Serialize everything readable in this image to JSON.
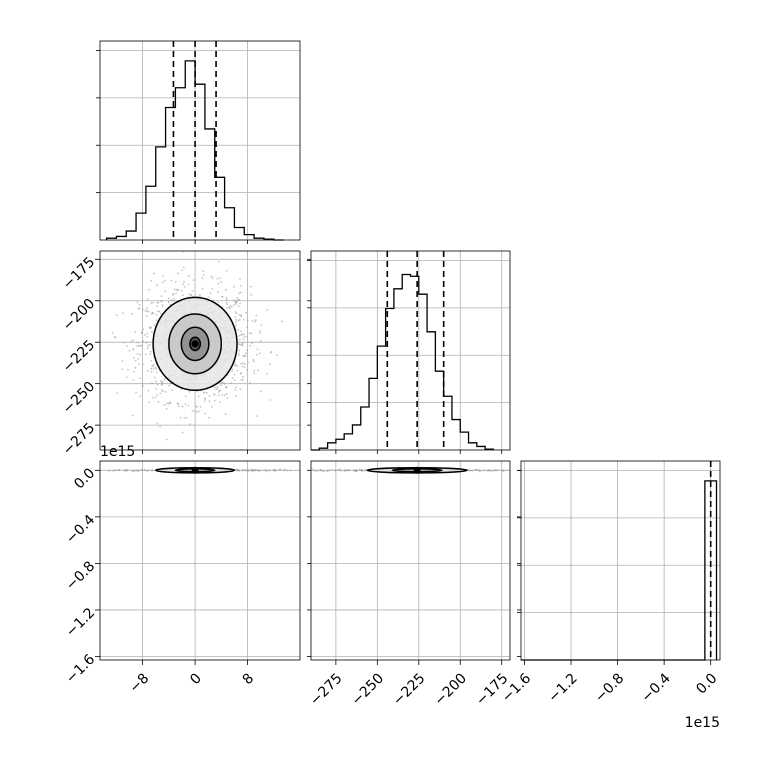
{
  "chart_data": {
    "type": "corner",
    "title": "",
    "parameters": [
      "",
      "",
      ""
    ],
    "grid": true,
    "ticks": {
      "p0": {
        "values": [
          -8,
          0,
          8
        ],
        "labels": [
          "−8",
          "0",
          "8"
        ]
      },
      "p1": {
        "values": [
          -275,
          -250,
          -225,
          -200,
          -175
        ],
        "labels": [
          "−275",
          "−250",
          "−225",
          "−200",
          "−175"
        ]
      },
      "p2": {
        "values": [
          -1.6,
          -1.2,
          -0.8,
          -0.4,
          0.0
        ],
        "labels": [
          "−1.6",
          "−1.2",
          "−0.8",
          "−0.4",
          "0.0"
        ],
        "offset": "1e15"
      }
    },
    "ranges": {
      "p0": [
        -14.5,
        16
      ],
      "p1": [
        -290,
        -170
      ],
      "p2": [
        -1.63,
        0.08
      ]
    },
    "quantile_lines": {
      "p0": [
        -3.3,
        0.0,
        3.2
      ],
      "p1": [
        -244,
        -226,
        -210
      ],
      "p2": [
        0.0
      ]
    },
    "hist_p0": {
      "bins": [
        -13.5,
        -12,
        -10.5,
        -9,
        -7.5,
        -6,
        -4.5,
        -3,
        -1.5,
        0,
        1.5,
        3,
        4.5,
        6,
        7.5,
        9,
        10.5,
        12,
        13.5
      ],
      "counts": [
        0.01,
        0.02,
        0.05,
        0.15,
        0.3,
        0.52,
        0.74,
        0.85,
        1.0,
        0.87,
        0.62,
        0.35,
        0.18,
        0.07,
        0.03,
        0.01,
        0.005,
        0.0
      ]
    },
    "hist_p1": {
      "bins": [
        -290,
        -285,
        -280,
        -275,
        -270,
        -265,
        -260,
        -255,
        -250,
        -245,
        -240,
        -235,
        -230,
        -225,
        -220,
        -215,
        -210,
        -205,
        -200,
        -195,
        -190,
        -185,
        -180
      ],
      "counts": [
        0.0,
        0.01,
        0.04,
        0.06,
        0.09,
        0.14,
        0.24,
        0.4,
        0.58,
        0.79,
        0.9,
        0.98,
        0.97,
        0.87,
        0.66,
        0.44,
        0.3,
        0.17,
        0.1,
        0.04,
        0.02,
        0.005
      ]
    },
    "hist_p2": {
      "bins": [
        -1.63,
        -0.05,
        0.05
      ],
      "counts": [
        0.0,
        1.0
      ]
    },
    "contours_p0_p1": {
      "center": [
        0.0,
        -226
      ],
      "levels": [
        {
          "rx": 6.4,
          "ry": 28
        },
        {
          "rx": 4.0,
          "ry": 18
        },
        {
          "rx": 2.1,
          "ry": 10
        },
        {
          "rx": 0.8,
          "ry": 4
        }
      ]
    },
    "contours_p0_p2": {
      "center": [
        0.0,
        0.0
      ],
      "levels": [
        {
          "rx": 6.0,
          "ry": 0.022
        },
        {
          "rx": 3.0,
          "ry": 0.012
        }
      ]
    },
    "contours_p1_p2": {
      "center": [
        -226,
        0.0
      ],
      "levels": [
        {
          "rx": 30,
          "ry": 0.022
        },
        {
          "rx": 15,
          "ry": 0.012
        }
      ]
    },
    "colors": {
      "hist": "#000000",
      "contour": "#000000",
      "grid": "#b0b0b0",
      "points": "#9e9e9e"
    }
  }
}
